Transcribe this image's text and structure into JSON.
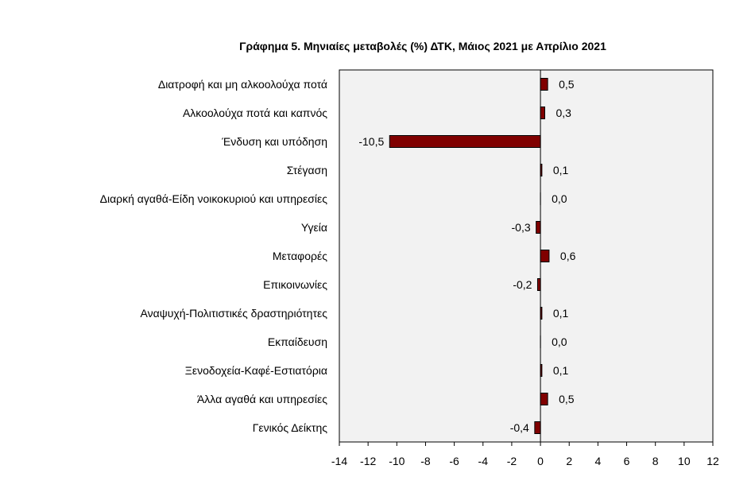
{
  "chart_data": {
    "type": "bar",
    "orientation": "horizontal",
    "title": "Γράφημα 5. Μηνιαίες μεταβολές (%) ΔΤΚ, Μάιος 2021 με Απρίλιο 2021",
    "categories": [
      "Διατροφή και μη αλκοολούχα ποτά",
      "Αλκοολούχα ποτά και καπνός",
      "Ένδυση και υπόδηση",
      "Στέγαση",
      "Διαρκή αγαθά-Είδη νοικοκυριού και υπηρεσίες",
      "Υγεία",
      "Μεταφορές",
      "Επικοινωνίες",
      "Αναψυχή-Πολιτιστικές δραστηριότητες",
      "Εκπαίδευση",
      "Ξενοδοχεία-Καφέ-Εστιατόρια",
      "Άλλα αγαθά και υπηρεσίες",
      "Γενικός Δείκτης"
    ],
    "values": [
      0.5,
      0.3,
      -10.5,
      0.1,
      0.0,
      -0.3,
      0.6,
      -0.2,
      0.1,
      0.0,
      0.1,
      0.5,
      -0.4
    ],
    "value_labels": [
      "0,5",
      "0,3",
      "-10,5",
      "0,1",
      "0,0",
      "-0,3",
      "0,6",
      "-0,2",
      "0,1",
      "0,0",
      "0,1",
      "0,5",
      "-0,4"
    ],
    "xlim": [
      -14,
      12
    ],
    "xticks": [
      -14,
      -12,
      -10,
      -8,
      -6,
      -4,
      -2,
      0,
      2,
      4,
      6,
      8,
      10,
      12
    ],
    "xtick_labels": [
      "-14",
      "-12",
      "-10",
      "-8",
      "-6",
      "-4",
      "-2",
      "0",
      "2",
      "4",
      "6",
      "8",
      "10",
      "12"
    ],
    "grid": false,
    "bar_color": "#800000",
    "plot_background": "#f2f2f2"
  }
}
